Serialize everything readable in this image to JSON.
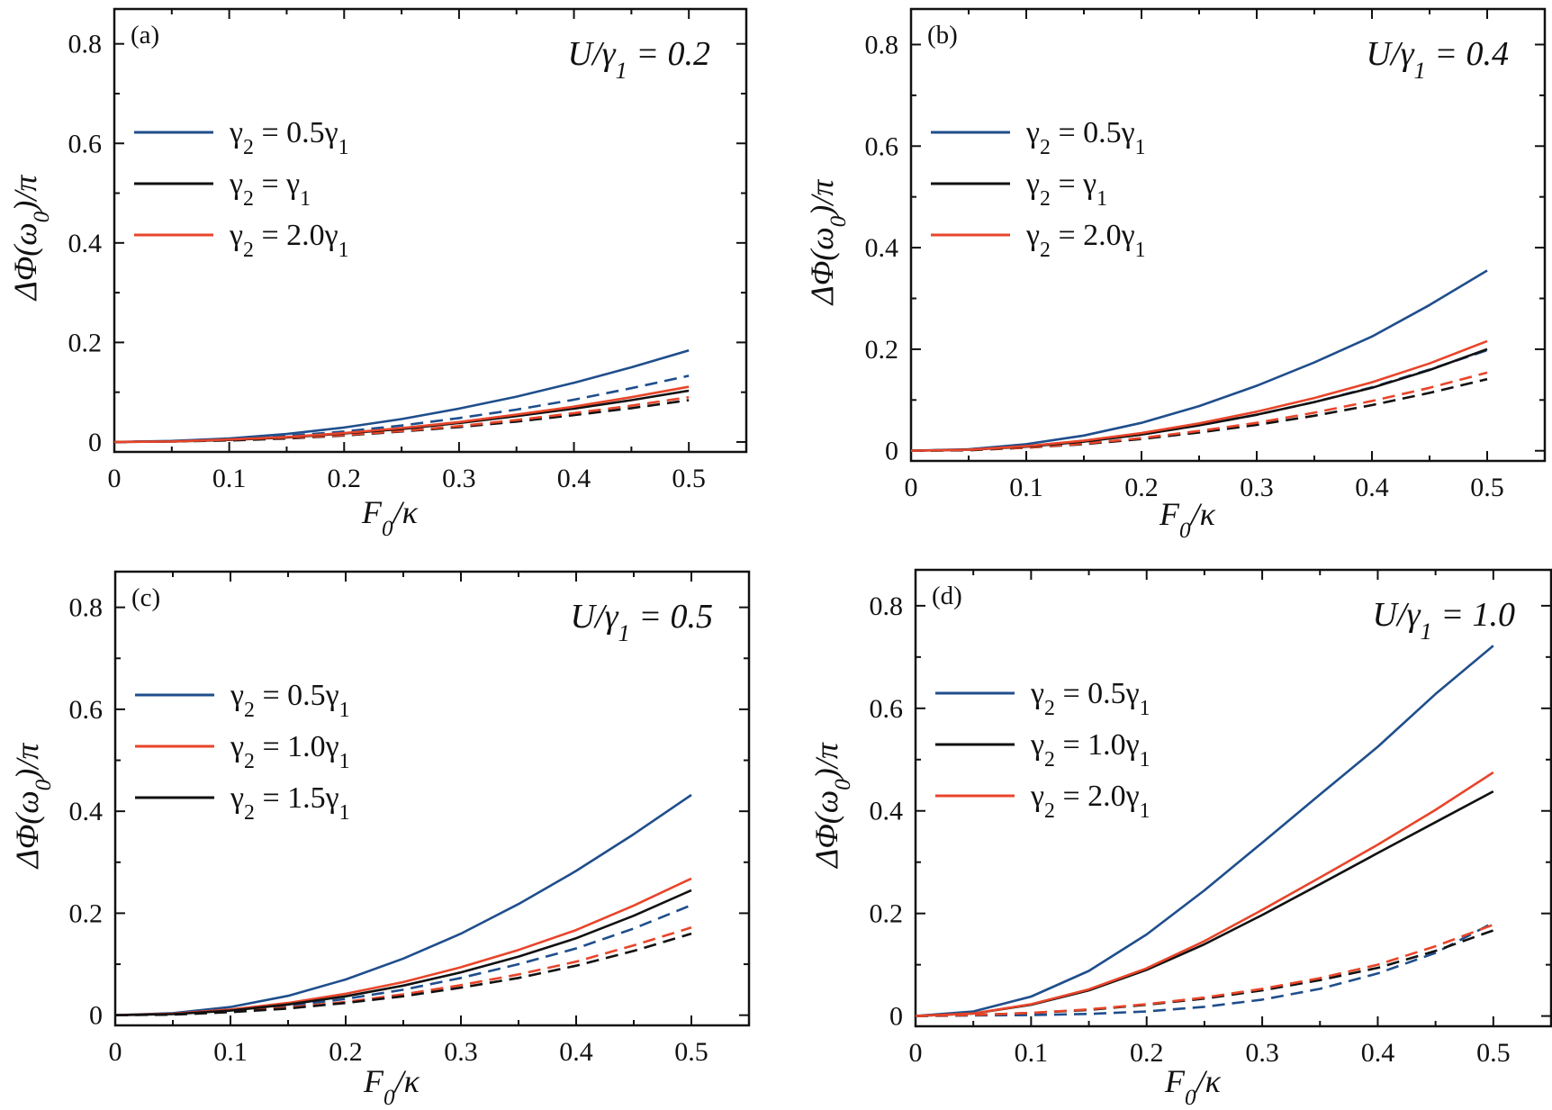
{
  "figure": {
    "background": "#ffffff"
  },
  "colors": {
    "blue": "#1f4e8c",
    "black": "#111111",
    "red": "#e8452a"
  },
  "chart_data": [
    {
      "type": "line",
      "panel_label": "(a)",
      "annotation": "U/γ1 = 0.2",
      "xlabel": "F0/κ",
      "ylabel": "ΔΦ(ω0)/π",
      "xlim": [
        0,
        0.55
      ],
      "ylim": [
        -0.02,
        0.87
      ],
      "xticks": [
        0,
        0.1,
        0.2,
        0.3,
        0.4,
        0.5
      ],
      "xtick_labels": [
        "0",
        "0.1",
        "0.2",
        "0.3",
        "0.4",
        "0.5"
      ],
      "yticks": [
        0,
        0.2,
        0.4,
        0.6,
        0.8
      ],
      "ytick_labels": [
        "0",
        "0.2",
        "0.4",
        "0.6",
        "0.8"
      ],
      "legend": [
        "γ2 = 0.5γ1",
        "γ2 = γ1",
        "γ2 = 2.0γ1"
      ],
      "legend_position": "upper-left",
      "grid": false,
      "x": [
        0,
        0.05,
        0.1,
        0.15,
        0.2,
        0.25,
        0.3,
        0.35,
        0.4,
        0.45,
        0.5
      ],
      "series": [
        {
          "name": "γ2 = 0.5γ1",
          "color": "blue",
          "dash": false,
          "values": [
            0,
            0.002,
            0.007,
            0.016,
            0.029,
            0.046,
            0.067,
            0.091,
            0.119,
            0.15,
            0.184
          ]
        },
        {
          "name": "γ2 = γ1",
          "color": "black",
          "dash": false,
          "values": [
            0,
            0.001,
            0.004,
            0.009,
            0.017,
            0.026,
            0.038,
            0.052,
            0.067,
            0.084,
            0.103
          ]
        },
        {
          "name": "γ2 = 2.0γ1",
          "color": "red",
          "dash": false,
          "values": [
            0,
            0.001,
            0.005,
            0.01,
            0.018,
            0.028,
            0.04,
            0.055,
            0.071,
            0.09,
            0.111
          ]
        },
        {
          "color": "blue",
          "dash": true,
          "values": [
            0,
            0.001,
            0.005,
            0.012,
            0.021,
            0.033,
            0.048,
            0.065,
            0.085,
            0.108,
            0.133
          ]
        },
        {
          "color": "black",
          "dash": true,
          "values": [
            0,
            0.001,
            0.003,
            0.007,
            0.013,
            0.021,
            0.03,
            0.041,
            0.054,
            0.068,
            0.084
          ]
        },
        {
          "color": "red",
          "dash": true,
          "values": [
            0,
            0.001,
            0.004,
            0.008,
            0.014,
            0.022,
            0.032,
            0.044,
            0.058,
            0.073,
            0.09
          ]
        }
      ]
    },
    {
      "type": "line",
      "panel_label": "(b)",
      "annotation": "U/γ1 = 0.4",
      "xlabel": "F0/κ",
      "ylabel": "ΔΦ(ω0)/π",
      "xlim": [
        0,
        0.55
      ],
      "ylim": [
        -0.02,
        0.87
      ],
      "xticks": [
        0,
        0.1,
        0.2,
        0.3,
        0.4,
        0.5
      ],
      "xtick_labels": [
        "0",
        "0.1",
        "0.2",
        "0.3",
        "0.4",
        "0.5"
      ],
      "yticks": [
        0,
        0.2,
        0.4,
        0.6,
        0.8
      ],
      "ytick_labels": [
        "0",
        "0.2",
        "0.4",
        "0.6",
        "0.8"
      ],
      "legend": [
        "γ2 = 0.5γ1",
        "γ2 = γ1",
        "γ2 = 2.0γ1"
      ],
      "legend_position": "upper-left",
      "grid": false,
      "x": [
        0,
        0.05,
        0.1,
        0.15,
        0.2,
        0.25,
        0.3,
        0.35,
        0.4,
        0.45,
        0.5
      ],
      "series": [
        {
          "name": "γ2 = 0.5γ1",
          "color": "blue",
          "dash": false,
          "values": [
            0,
            0.003,
            0.013,
            0.03,
            0.055,
            0.088,
            0.128,
            0.174,
            0.225,
            0.287,
            0.355
          ]
        },
        {
          "name": "γ2 = γ1",
          "color": "black",
          "dash": false,
          "values": [
            0,
            0.002,
            0.008,
            0.018,
            0.032,
            0.05,
            0.071,
            0.096,
            0.124,
            0.159,
            0.2
          ]
        },
        {
          "name": "γ2 = 2.0γ1",
          "color": "red",
          "dash": false,
          "values": [
            0,
            0.002,
            0.009,
            0.02,
            0.035,
            0.054,
            0.077,
            0.104,
            0.135,
            0.172,
            0.216
          ]
        },
        {
          "color": "blue",
          "dash": true,
          "values": [
            0,
            0.002,
            0.008,
            0.018,
            0.032,
            0.05,
            0.071,
            0.096,
            0.125,
            0.16,
            0.198
          ]
        },
        {
          "color": "black",
          "dash": true,
          "values": [
            0,
            0.001,
            0.006,
            0.013,
            0.023,
            0.036,
            0.051,
            0.069,
            0.09,
            0.114,
            0.141
          ]
        },
        {
          "color": "red",
          "dash": true,
          "values": [
            0,
            0.002,
            0.006,
            0.014,
            0.025,
            0.039,
            0.055,
            0.075,
            0.098,
            0.124,
            0.154
          ]
        }
      ]
    },
    {
      "type": "line",
      "panel_label": "(c)",
      "annotation": "U/γ1 = 0.5",
      "xlabel": "F0/κ",
      "ylabel": "ΔΦ(ω0)/π",
      "xlim": [
        0,
        0.55
      ],
      "ylim": [
        -0.02,
        0.87
      ],
      "xticks": [
        0,
        0.1,
        0.2,
        0.3,
        0.4,
        0.5
      ],
      "xtick_labels": [
        "0",
        "0.1",
        "0.2",
        "0.3",
        "0.4",
        "0.5"
      ],
      "yticks": [
        0,
        0.2,
        0.4,
        0.6,
        0.8
      ],
      "ytick_labels": [
        "0",
        "0.2",
        "0.4",
        "0.6",
        "0.8"
      ],
      "legend": [
        "γ2 = 0.5γ1",
        "γ2 = 1.0γ1",
        "γ2 = 1.5γ1"
      ],
      "legend_position": "upper-left",
      "grid": false,
      "x": [
        0,
        0.05,
        0.1,
        0.15,
        0.2,
        0.25,
        0.3,
        0.35,
        0.4,
        0.45,
        0.5
      ],
      "series": [
        {
          "name": "γ2 = 0.5γ1",
          "color": "blue",
          "dash": false,
          "values": [
            0,
            0.004,
            0.016,
            0.038,
            0.07,
            0.111,
            0.16,
            0.218,
            0.283,
            0.355,
            0.432
          ]
        },
        {
          "name": "γ2 = 1.0γ1",
          "color": "red",
          "dash": false,
          "values": [
            0,
            0.003,
            0.011,
            0.024,
            0.042,
            0.065,
            0.094,
            0.128,
            0.167,
            0.215,
            0.268
          ]
        },
        {
          "name": "γ2 = 1.5γ1",
          "color": "black",
          "dash": false,
          "values": [
            0,
            0.002,
            0.009,
            0.021,
            0.037,
            0.058,
            0.084,
            0.115,
            0.151,
            0.195,
            0.245
          ]
        },
        {
          "color": "blue",
          "dash": true,
          "values": [
            0,
            0.002,
            0.008,
            0.018,
            0.032,
            0.05,
            0.073,
            0.1,
            0.131,
            0.17,
            0.216
          ]
        },
        {
          "color": "red",
          "dash": true,
          "values": [
            0,
            0.002,
            0.007,
            0.015,
            0.026,
            0.041,
            0.059,
            0.08,
            0.105,
            0.137,
            0.172
          ]
        },
        {
          "color": "black",
          "dash": true,
          "values": [
            0,
            0.001,
            0.006,
            0.013,
            0.024,
            0.037,
            0.054,
            0.073,
            0.097,
            0.126,
            0.16
          ]
        }
      ]
    },
    {
      "type": "line",
      "panel_label": "(d)",
      "annotation": "U/γ1 = 1.0",
      "xlabel": "F0/κ",
      "ylabel": "ΔΦ(ω0)/π",
      "xlim": [
        0,
        0.55
      ],
      "ylim": [
        -0.02,
        0.87
      ],
      "xticks": [
        0,
        0.1,
        0.2,
        0.3,
        0.4,
        0.5
      ],
      "xtick_labels": [
        "0",
        "0.1",
        "0.2",
        "0.3",
        "0.4",
        "0.5"
      ],
      "yticks": [
        0,
        0.2,
        0.4,
        0.6,
        0.8
      ],
      "ytick_labels": [
        "0",
        "0.2",
        "0.4",
        "0.6",
        "0.8"
      ],
      "legend": [
        "γ2 = 0.5γ1",
        "γ2 = 1.0γ1",
        "γ2 = 2.0γ1"
      ],
      "legend_position": "upper-left",
      "grid": false,
      "x": [
        0,
        0.05,
        0.1,
        0.15,
        0.2,
        0.25,
        0.3,
        0.35,
        0.4,
        0.45,
        0.5
      ],
      "series": [
        {
          "name": "γ2 = 0.5γ1",
          "color": "blue",
          "dash": false,
          "values": [
            0,
            0.009,
            0.038,
            0.088,
            0.159,
            0.245,
            0.338,
            0.432,
            0.525,
            0.628,
            0.722
          ]
        },
        {
          "name": "γ2 = 1.0γ1",
          "color": "black",
          "dash": false,
          "values": [
            0,
            0.005,
            0.022,
            0.05,
            0.09,
            0.14,
            0.197,
            0.257,
            0.318,
            0.378,
            0.438
          ]
        },
        {
          "name": "γ2 = 2.0γ1",
          "color": "red",
          "dash": false,
          "values": [
            0,
            0.005,
            0.023,
            0.052,
            0.093,
            0.146,
            0.207,
            0.27,
            0.334,
            0.402,
            0.475
          ]
        },
        {
          "color": "blue",
          "dash": true,
          "values": [
            0,
            0.001,
            0.002,
            0.004,
            0.009,
            0.018,
            0.032,
            0.053,
            0.083,
            0.123,
            0.182
          ]
        },
        {
          "color": "black",
          "dash": true,
          "values": [
            0,
            0.002,
            0.006,
            0.012,
            0.022,
            0.034,
            0.05,
            0.07,
            0.094,
            0.127,
            0.167
          ]
        },
        {
          "color": "red",
          "dash": true,
          "values": [
            0,
            0.002,
            0.006,
            0.013,
            0.023,
            0.036,
            0.053,
            0.074,
            0.1,
            0.136,
            0.178
          ]
        }
      ]
    }
  ]
}
